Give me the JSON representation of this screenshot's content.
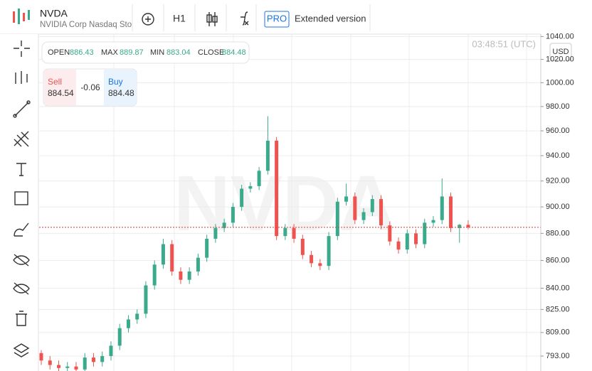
{
  "header": {
    "symbol": "NVDA",
    "description": "NVIDIA Corp Nasdaq Sto",
    "interval": "H1",
    "pro": "PRO",
    "extended": "Extended version",
    "time": "03:48:51 (UTC)",
    "currency": "USD"
  },
  "quote": {
    "sell_label": "Sell",
    "sell": "884.54",
    "spread": "-0.06",
    "buy_label": "Buy",
    "buy": "884.48"
  },
  "legend": {
    "open": "OPEN",
    "max": "MAX",
    "min": "MIN",
    "close": "CLOSE"
  },
  "chart_data": {
    "type": "candlestick",
    "watermark": "NVDA",
    "log": true,
    "grid": true,
    "up_color": "#3aa98c",
    "down_color": "#ef5350",
    "price_line_color": "#e53935",
    "categories": [
      null,
      null,
      null,
      null,
      null,
      null,
      null,
      null,
      null,
      null,
      null,
      null,
      null,
      null,
      null,
      null,
      null,
      null,
      null,
      null,
      null,
      null,
      null,
      null,
      null,
      null,
      null,
      null,
      null,
      null,
      null,
      null,
      null,
      null,
      null,
      null,
      null,
      null,
      null,
      null,
      null,
      null,
      null,
      null,
      null,
      null,
      null,
      null,
      null,
      null
    ],
    "open": [
      795,
      790,
      787,
      785,
      786,
      784,
      792,
      789,
      793,
      800,
      812,
      818,
      822,
      842,
      857,
      872,
      852,
      846,
      852,
      862,
      876,
      884,
      888,
      900,
      914,
      916,
      928,
      952,
      878,
      884,
      876,
      864,
      858,
      856,
      878,
      904,
      908,
      890,
      896,
      906,
      886,
      874,
      868,
      880,
      872,
      888,
      890,
      908,
      884,
      886.43
    ],
    "high": [
      797,
      793,
      790,
      789,
      789,
      795,
      795,
      796,
      803,
      815,
      821,
      825,
      845,
      860,
      876,
      875,
      855,
      855,
      865,
      879,
      887,
      891,
      903,
      917,
      919,
      931,
      972,
      955,
      887,
      887,
      879,
      867,
      861,
      881,
      907,
      918,
      911,
      899,
      909,
      909,
      889,
      877,
      883,
      883,
      891,
      893,
      922,
      911,
      887,
      889.87
    ],
    "low": [
      787,
      784,
      782,
      782,
      781,
      781,
      786,
      786,
      790,
      797,
      809,
      815,
      819,
      839,
      854,
      849,
      843,
      843,
      849,
      859,
      873,
      881,
      885,
      897,
      911,
      913,
      925,
      875,
      875,
      873,
      861,
      855,
      853,
      853,
      875,
      901,
      887,
      887,
      893,
      883,
      871,
      865,
      865,
      869,
      869,
      885,
      887,
      881,
      873,
      883.04
    ],
    "close": [
      790,
      787,
      785,
      786,
      784,
      792,
      789,
      793,
      800,
      812,
      818,
      822,
      842,
      857,
      872,
      852,
      846,
      852,
      862,
      876,
      884,
      888,
      900,
      914,
      916,
      928,
      952,
      878,
      884,
      876,
      864,
      858,
      856,
      878,
      904,
      908,
      890,
      896,
      906,
      886,
      874,
      868,
      880,
      872,
      888,
      890,
      908,
      884,
      886.43,
      884.48
    ],
    "ylim": [
      783,
      1044
    ],
    "yticks": [
      {
        "value": 1040,
        "label": "1040.00"
      },
      {
        "value": 1020,
        "label": "1020.00"
      },
      {
        "value": 1000,
        "label": "1000.00"
      },
      {
        "value": 980,
        "label": "980.00"
      },
      {
        "value": 960,
        "label": "960.00"
      },
      {
        "value": 940,
        "label": "940.00"
      },
      {
        "value": 920,
        "label": "920.00"
      },
      {
        "value": 900,
        "label": "900.00"
      },
      {
        "value": 880,
        "label": "880.00"
      },
      {
        "value": 860,
        "label": "860.00"
      },
      {
        "value": 840,
        "label": "840.00"
      },
      {
        "value": 825,
        "label": "825.00"
      },
      {
        "value": 809,
        "label": "809.00"
      },
      {
        "value": 793,
        "label": "793.00"
      }
    ]
  }
}
